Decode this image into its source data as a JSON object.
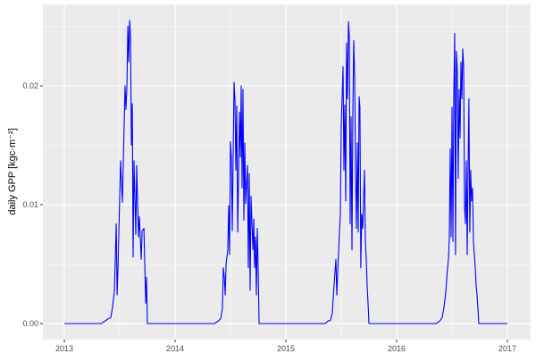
{
  "chart_data": {
    "type": "line",
    "title": "",
    "xlabel": "",
    "ylabel": "daily GPP [kgc·m⁻²]",
    "xlim": [
      2012.806,
      2017.21
    ],
    "ylim": [
      -0.00135,
      0.02684
    ],
    "x_ticks": [
      2013,
      2014,
      2015,
      2016,
      2017
    ],
    "x_tick_labels": [
      "2013",
      "2014",
      "2015",
      "2016",
      "2017"
    ],
    "y_ticks": [
      0,
      0.01,
      0.02
    ],
    "y_tick_labels": [
      "0.00",
      "0.01",
      "0.02"
    ],
    "grid": true,
    "legend": "none",
    "colors": {
      "line": "#0000FF",
      "panel": "#EBEBEB",
      "grid": "#FFFFFF"
    },
    "series": [
      {
        "x": [
          2013.0,
          2013.331,
          2013.363,
          2013.395,
          2013.419,
          2013.435,
          2013.452,
          2013.468,
          2013.476,
          2013.484,
          2013.508,
          2013.524,
          2013.548,
          2013.556,
          2013.565,
          2013.573,
          2013.581,
          2013.589,
          2013.597,
          2013.605,
          2013.613,
          2013.621,
          2013.629,
          2013.645,
          2013.653,
          2013.669,
          2013.677,
          2013.694,
          2013.702,
          2013.718,
          2013.734,
          2013.742,
          2013.75,
          2014.355,
          2014.387,
          2014.411,
          2014.427,
          2014.435,
          2014.444,
          2014.452,
          2014.46,
          2014.476,
          2014.484,
          2014.492,
          2014.5,
          2014.508,
          2014.516,
          2014.532,
          2014.54,
          2014.548,
          2014.556,
          2014.565,
          2014.581,
          2014.589,
          2014.597,
          2014.605,
          2014.613,
          2014.621,
          2014.629,
          2014.637,
          2014.653,
          2014.661,
          2014.669,
          2014.677,
          2014.685,
          2014.702,
          2014.71,
          2014.718,
          2014.726,
          2014.734,
          2014.742,
          2014.75,
          2014.758,
          2015.355,
          2015.379,
          2015.403,
          2015.419,
          2015.435,
          2015.452,
          2015.46,
          2015.468,
          2015.484,
          2015.492,
          2015.5,
          2015.516,
          2015.524,
          2015.532,
          2015.54,
          2015.548,
          2015.556,
          2015.565,
          2015.573,
          2015.581,
          2015.589,
          2015.597,
          2015.605,
          2015.613,
          2015.621,
          2015.629,
          2015.637,
          2015.645,
          2015.653,
          2015.661,
          2015.669,
          2015.677,
          2015.685,
          2015.694,
          2015.71,
          2015.718,
          2015.726,
          2015.734,
          2015.742,
          2015.75,
          2016.355,
          2016.387,
          2016.411,
          2016.427,
          2016.444,
          2016.46,
          2016.468,
          2016.476,
          2016.484,
          2016.492,
          2016.5,
          2016.508,
          2016.516,
          2016.524,
          2016.532,
          2016.54,
          2016.548,
          2016.556,
          2016.565,
          2016.573,
          2016.581,
          2016.589,
          2016.597,
          2016.605,
          2016.613,
          2016.621,
          2016.629,
          2016.637,
          2016.645,
          2016.653,
          2016.661,
          2016.669,
          2016.677,
          2016.685,
          2016.694,
          2016.702,
          2016.71,
          2016.718,
          2016.726,
          2016.734,
          2016.742,
          2017.0
        ],
        "y": [
          0,
          0,
          0.0002,
          0.0004,
          0.0005,
          0.0014,
          0.0028,
          0.0084,
          0.0024,
          0.0047,
          0.0137,
          0.0102,
          0.02,
          0.018,
          0.02,
          0.025,
          0.022,
          0.0255,
          0.024,
          0.015,
          0.0185,
          0.0056,
          0.0137,
          0.0075,
          0.0133,
          0.0073,
          0.009,
          0.0054,
          0.0078,
          0.008,
          0.0017,
          0.0039,
          0,
          0,
          0.0002,
          0.0004,
          0.0013,
          0.0047,
          0.0039,
          0.0024,
          0.005,
          0.0062,
          0.0099,
          0.0058,
          0.0153,
          0.014,
          0.0078,
          0.0203,
          0.0188,
          0.0129,
          0.0183,
          0.0077,
          0.0178,
          0.014,
          0.02,
          0.0114,
          0.0197,
          0.0087,
          0.0152,
          0.0101,
          0.0133,
          0.0047,
          0.0126,
          0.0028,
          0.0107,
          0.0062,
          0.0088,
          0.0047,
          0.0073,
          0.0024,
          0.008,
          0.0047,
          0,
          0,
          0.0002,
          0.0003,
          0.0009,
          0.0032,
          0.0054,
          0.0024,
          0.0043,
          0.0077,
          0.0092,
          0.0167,
          0.0216,
          0.0129,
          0.0184,
          0.0103,
          0.0236,
          0.0189,
          0.0254,
          0.0242,
          0.0084,
          0.0174,
          0.0062,
          0.0178,
          0.0238,
          0.0208,
          0.0129,
          0.008,
          0.0152,
          0.0077,
          0.0191,
          0.0182,
          0.0047,
          0.0092,
          0.008,
          0.0129,
          0.0069,
          0.0054,
          0.0032,
          0.0017,
          0,
          0,
          0.0002,
          0.0005,
          0.0013,
          0.0026,
          0.0047,
          0.0054,
          0.0073,
          0.0147,
          0.0073,
          0.0182,
          0.0069,
          0.0193,
          0.0244,
          0.0058,
          0.0229,
          0.0212,
          0.0122,
          0.0197,
          0.0156,
          0.022,
          0.0189,
          0.0231,
          0.0216,
          0.0099,
          0.0084,
          0.0137,
          0.0058,
          0.0133,
          0.0189,
          0.0077,
          0.0129,
          0.0103,
          0.0114,
          0.0069,
          0.0058,
          0.0047,
          0.0032,
          0.0024,
          0.0013,
          0,
          0
        ]
      }
    ]
  }
}
